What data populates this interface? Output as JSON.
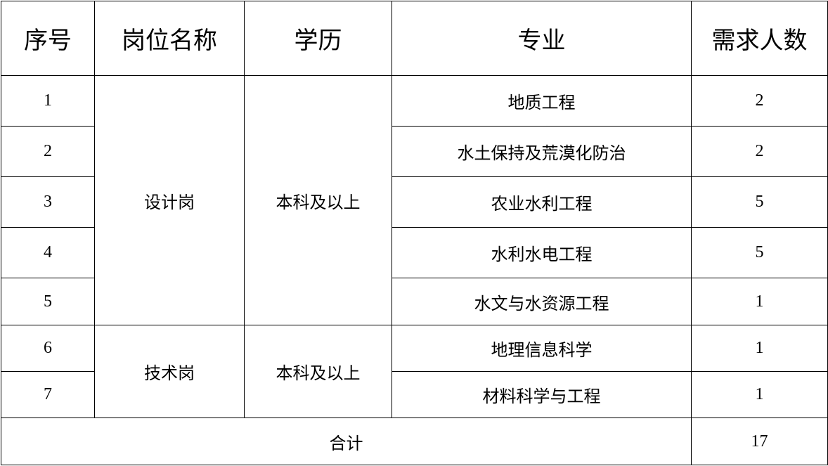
{
  "headers": [
    "序号",
    "岗位名称",
    "学历",
    "专业",
    "需求人数"
  ],
  "groups": [
    {
      "position": "设计岗",
      "education": "本科及以上"
    },
    {
      "position": "技术岗",
      "education": "本科及以上"
    }
  ],
  "rows": [
    {
      "no": "1",
      "major": "地质工程",
      "count": "2"
    },
    {
      "no": "2",
      "major": "水土保持及荒漠化防治",
      "count": "2"
    },
    {
      "no": "3",
      "major": "农业水利工程",
      "count": "5"
    },
    {
      "no": "4",
      "major": "水利水电工程",
      "count": "5"
    },
    {
      "no": "5",
      "major": "水文与水资源工程",
      "count": "1"
    },
    {
      "no": "6",
      "major": "地理信息科学",
      "count": "1"
    },
    {
      "no": "7",
      "major": "材料科学与工程",
      "count": "1"
    }
  ],
  "total": {
    "label": "合计",
    "count": "17"
  }
}
